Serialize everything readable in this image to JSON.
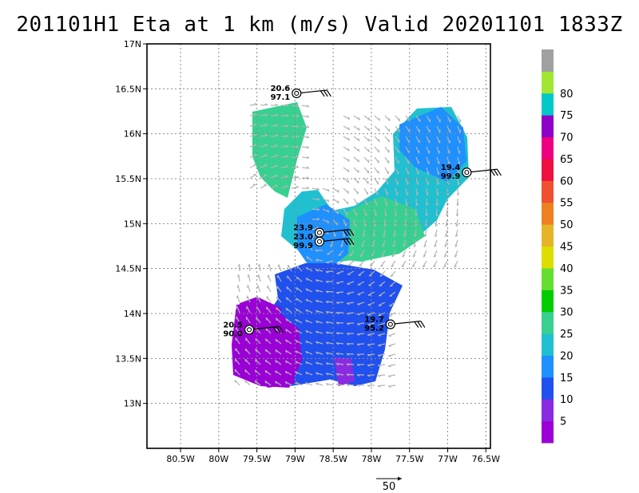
{
  "title": "201101H1 Eta at 1 km (m/s) Valid 20201101  1833Z",
  "chart_data": {
    "type": "heatmap",
    "title": "201101H1 Eta at 1 km (m/s) Valid 20201101  1833Z",
    "x_ticks": [
      "80.5W",
      "80W",
      "79.5W",
      "79W",
      "78.5W",
      "78W",
      "77.5W",
      "77W",
      "76.5W"
    ],
    "x_values": [
      -80.5,
      -80.0,
      -79.5,
      -79.0,
      -78.5,
      -78.0,
      -77.5,
      -77.0,
      -76.5
    ],
    "y_ticks": [
      "13N",
      "13.5N",
      "14N",
      "14.5N",
      "15N",
      "15.5N",
      "16N",
      "16.5N",
      "17N"
    ],
    "y_values": [
      13.0,
      13.5,
      14.0,
      14.5,
      15.0,
      15.5,
      16.0,
      16.5,
      17.0
    ],
    "xlim": [
      -80.94,
      -76.44
    ],
    "ylim": [
      12.5,
      17.0
    ],
    "grid": true,
    "colorbar": {
      "labels": [
        "5",
        "10",
        "15",
        "20",
        "25",
        "30",
        "35",
        "40",
        "45",
        "50",
        "55",
        "60",
        "65",
        "70",
        "75",
        "80"
      ],
      "colors": [
        "#9a00d6",
        "#8a2be2",
        "#2050ee",
        "#1e90ff",
        "#20c0d0",
        "#38d090",
        "#00cc00",
        "#66dd33",
        "#dddd00",
        "#e6b428",
        "#ee8020",
        "#f05030",
        "#ee1040",
        "#ee0080",
        "#8c00c8",
        "#00c8c8",
        "#a0e632",
        "#a0a0a0"
      ],
      "bins": [
        [
          0,
          5
        ],
        [
          5,
          10
        ],
        [
          10,
          15
        ],
        [
          15,
          20
        ],
        [
          20,
          25
        ],
        [
          25,
          30
        ],
        [
          30,
          35
        ],
        [
          35,
          40
        ],
        [
          40,
          45
        ],
        [
          45,
          50
        ],
        [
          50,
          55
        ],
        [
          55,
          60
        ],
        [
          60,
          65
        ],
        [
          65,
          70
        ],
        [
          70,
          75
        ],
        [
          75,
          80
        ],
        [
          80,
          85
        ]
      ]
    },
    "observations": [
      {
        "lon": -78.98,
        "lat": 16.45,
        "speed": "20.6",
        "pressure": "97.1"
      },
      {
        "lon": -76.75,
        "lat": 15.57,
        "speed": "19.4",
        "pressure": "99.9"
      },
      {
        "lon": -78.68,
        "lat": 14.9,
        "speed": "23.9",
        "pressure": ""
      },
      {
        "lon": -78.68,
        "lat": 14.8,
        "speed": "23.0",
        "pressure": "99.9"
      },
      {
        "lon": -79.6,
        "lat": 13.82,
        "speed": "20.5",
        "pressure": "90.0"
      },
      {
        "lon": -77.75,
        "lat": 13.88,
        "speed": "19.7",
        "pressure": "95.2"
      }
    ],
    "reference_vector": "50"
  }
}
